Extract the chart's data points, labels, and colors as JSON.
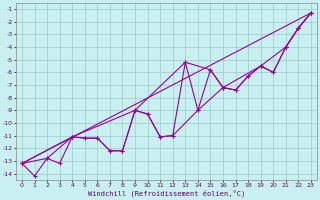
{
  "title": "",
  "xlabel": "Windchill (Refroidissement éolien,°C)",
  "bg_color": "#c8f0f0",
  "grid_color": "#a0c8c8",
  "line_color": "#990099",
  "xlim": [
    -0.5,
    23.5
  ],
  "ylim": [
    -14.5,
    -0.5
  ],
  "xticks": [
    0,
    1,
    2,
    3,
    4,
    5,
    6,
    7,
    8,
    9,
    10,
    11,
    12,
    13,
    14,
    15,
    16,
    17,
    18,
    19,
    20,
    21,
    22,
    23
  ],
  "yticks": [
    -1,
    -2,
    -3,
    -4,
    -5,
    -6,
    -7,
    -8,
    -9,
    -10,
    -11,
    -12,
    -13,
    -14
  ],
  "line1_x": [
    0,
    1,
    2,
    3,
    4,
    5,
    6,
    7,
    8,
    9,
    10,
    11,
    12,
    13,
    14,
    15,
    16,
    17,
    18,
    19,
    20,
    21,
    22,
    23
  ],
  "line1_y": [
    -13.2,
    -14.2,
    -12.8,
    -13.2,
    -11.1,
    -11.2,
    -11.2,
    -12.2,
    -12.2,
    -9.0,
    -9.3,
    -11.1,
    -11.0,
    -5.2,
    -9.0,
    -5.8,
    -7.2,
    -7.4,
    -6.3,
    -5.5,
    -6.0,
    -4.0,
    -2.5,
    -1.3
  ],
  "line2_x": [
    0,
    2,
    4,
    5,
    6,
    7,
    8,
    9,
    10,
    11,
    12,
    14,
    16,
    17,
    18,
    19,
    20,
    21,
    22,
    23
  ],
  "line2_y": [
    -13.2,
    -12.8,
    -11.1,
    -11.2,
    -11.2,
    -12.2,
    -12.2,
    -9.0,
    -9.3,
    -11.1,
    -11.0,
    -9.0,
    -7.2,
    -7.4,
    -6.3,
    -5.5,
    -6.0,
    -4.0,
    -2.5,
    -1.3
  ],
  "line3_x": [
    0,
    23
  ],
  "line3_y": [
    -13.2,
    -1.3
  ],
  "line4_x": [
    0,
    4,
    9,
    13,
    15,
    16,
    19,
    21,
    22,
    23
  ],
  "line4_y": [
    -13.2,
    -11.1,
    -9.0,
    -5.2,
    -5.8,
    -7.2,
    -5.5,
    -4.0,
    -2.5,
    -1.3
  ]
}
